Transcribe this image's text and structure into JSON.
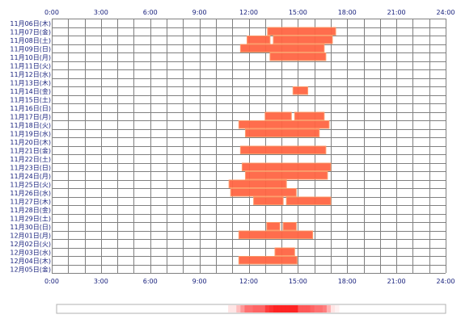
{
  "chart_data": {
    "type": "timeline",
    "x_ticks": [
      "0:00",
      "3:00",
      "6:00",
      "9:00",
      "12:00",
      "15:00",
      "18:00",
      "21:00",
      "24:00"
    ],
    "x_range": [
      0,
      24
    ],
    "grid": true,
    "rows": [
      {
        "date": "11月06日(木)",
        "intervals": []
      },
      {
        "date": "11月07日(金)",
        "intervals": [
          [
            13.15,
            17.3
          ]
        ]
      },
      {
        "date": "11月08日(土)",
        "intervals": [
          [
            11.9,
            13.3
          ],
          [
            13.5,
            17.1
          ]
        ]
      },
      {
        "date": "11月09日(日)",
        "intervals": [
          [
            11.5,
            16.6
          ]
        ]
      },
      {
        "date": "11月10日(月)",
        "intervals": [
          [
            13.3,
            16.7
          ]
        ]
      },
      {
        "date": "11月11日(火)",
        "intervals": []
      },
      {
        "date": "11月12日(水)",
        "intervals": []
      },
      {
        "date": "11月13日(木)",
        "intervals": []
      },
      {
        "date": "11月14日(金)",
        "intervals": [
          [
            14.7,
            15.6
          ]
        ]
      },
      {
        "date": "11月15日(土)",
        "intervals": []
      },
      {
        "date": "11月16日(日)",
        "intervals": []
      },
      {
        "date": "11月17日(月)",
        "intervals": [
          [
            13.0,
            14.6
          ],
          [
            14.8,
            16.6
          ]
        ]
      },
      {
        "date": "11月18日(火)",
        "intervals": [
          [
            11.4,
            16.9
          ]
        ]
      },
      {
        "date": "11月19日(水)",
        "intervals": [
          [
            11.8,
            16.3
          ]
        ]
      },
      {
        "date": "11月20日(木)",
        "intervals": []
      },
      {
        "date": "11月21日(金)",
        "intervals": [
          [
            11.5,
            16.7
          ]
        ]
      },
      {
        "date": "11月22日(土)",
        "intervals": []
      },
      {
        "date": "11月23日(日)",
        "intervals": [
          [
            11.6,
            17.0
          ]
        ]
      },
      {
        "date": "11月24日(月)",
        "intervals": [
          [
            11.8,
            16.8
          ]
        ]
      },
      {
        "date": "11月25日(火)",
        "intervals": [
          [
            10.8,
            14.3
          ]
        ]
      },
      {
        "date": "11月26日(水)",
        "intervals": [
          [
            10.9,
            14.9
          ]
        ]
      },
      {
        "date": "11月27日(木)",
        "intervals": [
          [
            12.3,
            14.1
          ],
          [
            14.3,
            17.0
          ]
        ]
      },
      {
        "date": "11月28日(金)",
        "intervals": []
      },
      {
        "date": "11月29日(土)",
        "intervals": []
      },
      {
        "date": "11月30日(日)",
        "intervals": [
          [
            13.1,
            13.9
          ],
          [
            14.1,
            14.9
          ]
        ]
      },
      {
        "date": "12月01日(月)",
        "intervals": [
          [
            11.4,
            15.9
          ]
        ]
      },
      {
        "date": "12月02日(火)",
        "intervals": []
      },
      {
        "date": "12月03日(水)",
        "intervals": [
          [
            13.6,
            14.8
          ]
        ]
      },
      {
        "date": "12月04日(木)",
        "intervals": [
          [
            11.4,
            14.95
          ]
        ]
      },
      {
        "date": "12月05日(金)",
        "intervals": []
      }
    ],
    "colors": {
      "bar_fill": "#ff6644",
      "bar_edge": "#ff9966",
      "grid_line": "#808080",
      "tick_text": "#1a237e",
      "border": "#808080",
      "heat_hot": "#ff2020",
      "heat_cold": "#ffffff"
    }
  }
}
